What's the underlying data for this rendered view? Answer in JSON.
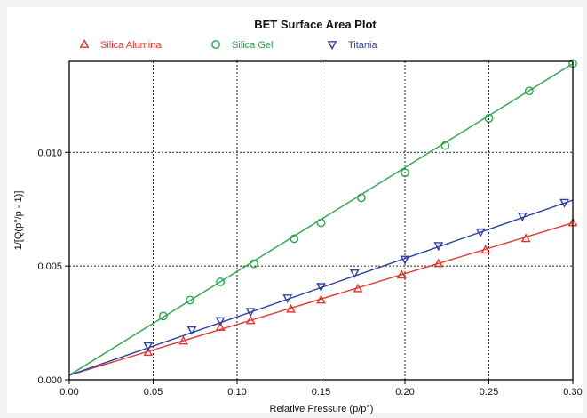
{
  "chart_data": {
    "type": "scatter",
    "title": "BET Surface Area Plot",
    "xlabel": "Relative Pressure (p/p°)",
    "ylabel": "1/[Q(p°/p - 1)]",
    "xlim": [
      0,
      0.3
    ],
    "ylim": [
      0,
      0.014
    ],
    "x_ticks": [
      0,
      0.05,
      0.1,
      0.15,
      0.2,
      0.25,
      0.3
    ],
    "x_tick_labels": [
      "0.00",
      "0.05",
      "0.10",
      "0.15",
      "0.20",
      "0.25",
      "0.30"
    ],
    "y_ticks": [
      0,
      0.005,
      0.01
    ],
    "y_tick_labels": [
      "0.000",
      "0.005",
      "0.010"
    ],
    "grid": true,
    "legend_position": "top",
    "series": [
      {
        "name": "Silica Alumina",
        "marker": "triangle-up",
        "color": "#e8352a",
        "x": [
          0.047,
          0.068,
          0.09,
          0.108,
          0.132,
          0.15,
          0.172,
          0.198,
          0.22,
          0.248,
          0.272,
          0.3
        ],
        "y": [
          0.0012,
          0.0017,
          0.0023,
          0.0026,
          0.0031,
          0.0035,
          0.004,
          0.0046,
          0.0051,
          0.0057,
          0.0062,
          0.0069
        ],
        "fit_line": [
          [
            0,
            0.0002
          ],
          [
            0.3,
            0.0069
          ]
        ]
      },
      {
        "name": "Silica Gel",
        "marker": "circle",
        "color": "#27a847",
        "x": [
          0.056,
          0.072,
          0.09,
          0.11,
          0.134,
          0.15,
          0.174,
          0.2,
          0.224,
          0.25,
          0.274,
          0.3
        ],
        "y": [
          0.0028,
          0.0035,
          0.0043,
          0.0051,
          0.0062,
          0.0069,
          0.008,
          0.0091,
          0.0103,
          0.0115,
          0.0127,
          0.0139
        ],
        "fit_line": [
          [
            0,
            0.0002
          ],
          [
            0.3,
            0.0139
          ]
        ]
      },
      {
        "name": "Titania",
        "marker": "triangle-down",
        "color": "#2b3fa8",
        "x": [
          0.047,
          0.073,
          0.09,
          0.108,
          0.13,
          0.15,
          0.17,
          0.2,
          0.22,
          0.245,
          0.27,
          0.295
        ],
        "y": [
          0.0015,
          0.0022,
          0.0026,
          0.003,
          0.0036,
          0.0041,
          0.0047,
          0.0053,
          0.0059,
          0.0065,
          0.0072,
          0.0078
        ],
        "fit_line": [
          [
            0,
            0.0002
          ],
          [
            0.3,
            0.0079
          ]
        ]
      }
    ]
  }
}
